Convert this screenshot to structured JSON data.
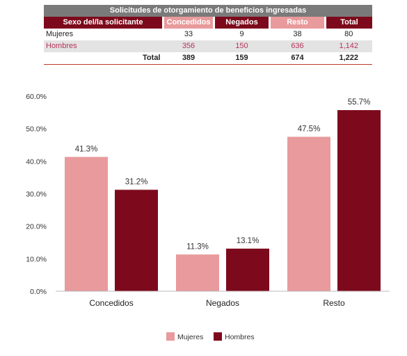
{
  "table": {
    "title": "Solicitudes de otorgamiento de beneficios ingresadas",
    "headers": [
      "Sexo del/la solicitante",
      "Concedidos",
      "Negados",
      "Resto",
      "Total"
    ],
    "rows": [
      {
        "label": "Mujeres",
        "values": [
          "33",
          "9",
          "38",
          "80"
        ]
      },
      {
        "label": "Hombres",
        "values": [
          "356",
          "150",
          "636",
          "1,142"
        ]
      },
      {
        "label": "Total",
        "values": [
          "389",
          "159",
          "674",
          "1,222"
        ]
      }
    ]
  },
  "chart_data": {
    "type": "bar",
    "categories": [
      "Concedidos",
      "Negados",
      "Resto"
    ],
    "series": [
      {
        "name": "Mujeres",
        "values": [
          41.3,
          11.3,
          47.5
        ],
        "color": "#e89a9c"
      },
      {
        "name": "Hombres",
        "values": [
          31.2,
          13.1,
          55.7
        ],
        "color": "#7d0a1c"
      }
    ],
    "data_labels": [
      [
        "41.3%",
        "11.3%",
        "47.5%"
      ],
      [
        "31.2%",
        "13.1%",
        "55.7%"
      ]
    ],
    "yticks": [
      "0.0%",
      "10.0%",
      "20.0%",
      "30.0%",
      "40.0%",
      "50.0%",
      "60.0%"
    ],
    "ylim": [
      0,
      60
    ],
    "grid": false,
    "legend": "bottom-center"
  }
}
